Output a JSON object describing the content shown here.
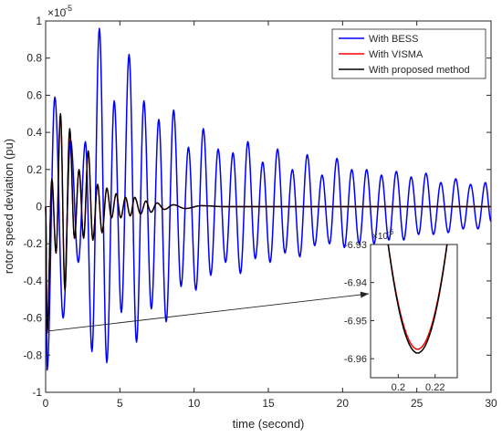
{
  "chart_data": [
    {
      "type": "line",
      "xlabel": "time (second)",
      "ylabel": "rotor speed deviation (pu)",
      "exponent_label": "×10",
      "exponent_power": "-5",
      "xlim": [
        0,
        30
      ],
      "ylim": [
        -1,
        1
      ],
      "x_ticks": [
        "0",
        "5",
        "10",
        "15",
        "20",
        "25",
        "30"
      ],
      "y_ticks": [
        "-1",
        "-0.8",
        "-0.6",
        "-0.4",
        "-0.2",
        "0",
        "0.2",
        "0.4",
        "0.6",
        "0.8",
        "1"
      ],
      "grid": false,
      "legend_position": "top-right",
      "series": [
        {
          "name": "With BESS",
          "color": "#0000ff",
          "freq_hz": 1.0,
          "extrema": [
            [
              0.1,
              -0.88
            ],
            [
              0.62,
              0.59
            ],
            [
              1.18,
              -0.6
            ],
            [
              1.68,
              0.36
            ],
            [
              2.2,
              -0.3
            ],
            [
              2.68,
              0.35
            ],
            [
              3.12,
              -0.78
            ],
            [
              3.62,
              0.96
            ],
            [
              4.12,
              -0.84
            ],
            [
              4.62,
              0.57
            ],
            [
              5.1,
              -0.57
            ],
            [
              5.62,
              0.82
            ],
            [
              6.12,
              -0.73
            ],
            [
              6.62,
              0.57
            ],
            [
              7.12,
              -0.55
            ],
            [
              7.62,
              0.47
            ],
            [
              8.12,
              -0.62
            ],
            [
              8.62,
              0.52
            ],
            [
              9.12,
              -0.43
            ],
            [
              9.62,
              0.32
            ],
            [
              10.12,
              -0.45
            ],
            [
              10.62,
              0.42
            ],
            [
              11.12,
              -0.37
            ],
            [
              11.62,
              0.31
            ],
            [
              12.12,
              -0.3
            ],
            [
              12.62,
              0.29
            ],
            [
              13.12,
              -0.36
            ],
            [
              13.62,
              0.35
            ],
            [
              14.12,
              -0.28
            ],
            [
              14.62,
              0.24
            ],
            [
              15.12,
              -0.3
            ],
            [
              15.62,
              0.31
            ],
            [
              16.12,
              -0.25
            ],
            [
              16.62,
              0.2
            ],
            [
              17.12,
              -0.27
            ],
            [
              17.62,
              0.28
            ],
            [
              18.12,
              -0.21
            ],
            [
              18.62,
              0.17
            ],
            [
              19.12,
              -0.2
            ],
            [
              19.62,
              0.26
            ],
            [
              20.12,
              -0.22
            ],
            [
              20.62,
              0.2
            ],
            [
              21.12,
              -0.2
            ],
            [
              21.62,
              0.2
            ],
            [
              22.12,
              -0.2
            ],
            [
              22.62,
              0.17
            ],
            [
              23.12,
              -0.18
            ],
            [
              23.62,
              0.19
            ],
            [
              24.12,
              -0.18
            ],
            [
              24.62,
              0.16
            ],
            [
              25.12,
              -0.15
            ],
            [
              25.62,
              0.18
            ],
            [
              26.12,
              -0.15
            ],
            [
              26.62,
              0.13
            ],
            [
              27.12,
              -0.14
            ],
            [
              27.62,
              0.15
            ],
            [
              28.12,
              -0.12
            ],
            [
              28.62,
              0.12
            ],
            [
              29.12,
              -0.12
            ],
            [
              29.62,
              0.13
            ],
            [
              30.0,
              -0.08
            ]
          ]
        },
        {
          "name": "With VISMA",
          "color": "#ff0000",
          "freq_hz": 1.6,
          "extrema": [
            [
              0.1,
              -0.68
            ],
            [
              0.42,
              0.15
            ],
            [
              0.7,
              -0.25
            ],
            [
              1.0,
              0.5
            ],
            [
              1.3,
              -0.45
            ],
            [
              1.62,
              0.42
            ],
            [
              1.94,
              -0.17
            ],
            [
              2.25,
              0.2
            ],
            [
              2.56,
              -0.17
            ],
            [
              2.87,
              0.3
            ],
            [
              3.18,
              -0.18
            ],
            [
              3.5,
              0.12
            ],
            [
              3.8,
              -0.14
            ],
            [
              4.12,
              0.1
            ],
            [
              4.44,
              -0.06
            ],
            [
              4.75,
              0.07
            ],
            [
              5.06,
              -0.06
            ],
            [
              5.38,
              0.05
            ],
            [
              5.7,
              -0.05
            ],
            [
              6.0,
              0.05
            ],
            [
              6.4,
              -0.04
            ],
            [
              6.75,
              0.03
            ],
            [
              7.1,
              -0.03
            ],
            [
              7.5,
              0.02
            ],
            [
              8.0,
              -0.015
            ],
            [
              8.6,
              0.01
            ],
            [
              9.4,
              -0.01
            ],
            [
              10.5,
              0.005
            ],
            [
              12.0,
              0.0
            ],
            [
              30.0,
              0.0
            ]
          ]
        },
        {
          "name": "With proposed method",
          "color": "#000000",
          "freq_hz": 1.6,
          "extrema": [
            [
              0.1,
              -0.68
            ],
            [
              0.42,
              0.15
            ],
            [
              0.7,
              -0.25
            ],
            [
              1.0,
              0.5
            ],
            [
              1.3,
              -0.45
            ],
            [
              1.62,
              0.42
            ],
            [
              1.94,
              -0.17
            ],
            [
              2.25,
              0.2
            ],
            [
              2.56,
              -0.17
            ],
            [
              2.87,
              0.3
            ],
            [
              3.18,
              -0.18
            ],
            [
              3.5,
              0.12
            ],
            [
              3.8,
              -0.14
            ],
            [
              4.12,
              0.1
            ],
            [
              4.44,
              -0.06
            ],
            [
              4.75,
              0.07
            ],
            [
              5.06,
              -0.06
            ],
            [
              5.38,
              0.05
            ],
            [
              5.7,
              -0.05
            ],
            [
              6.0,
              0.05
            ],
            [
              6.4,
              -0.04
            ],
            [
              6.75,
              0.03
            ],
            [
              7.1,
              -0.03
            ],
            [
              7.5,
              0.02
            ],
            [
              8.0,
              -0.015
            ],
            [
              8.6,
              0.01
            ],
            [
              9.4,
              -0.01
            ],
            [
              10.5,
              0.005
            ],
            [
              12.0,
              0.0
            ],
            [
              30.0,
              0.0
            ]
          ]
        }
      ]
    },
    {
      "type": "line",
      "role": "inset-zoom",
      "exponent_label": "×10",
      "exponent_power": "-6",
      "xlim": [
        0.185,
        0.232
      ],
      "ylim": [
        -6.965,
        -6.93
      ],
      "x_ticks": [
        "0.2",
        "0.22"
      ],
      "x_tick_values": [
        0.2,
        0.22
      ],
      "y_ticks": [
        "-6.93",
        "-6.94",
        "-6.95",
        "-6.96"
      ],
      "y_tick_values": [
        -6.93,
        -6.94,
        -6.95,
        -6.96
      ],
      "series": [
        {
          "name": "With VISMA",
          "color": "#ff0000",
          "vertex": [
            0.2105,
            -6.9575
          ]
        },
        {
          "name": "With proposed method",
          "color": "#000000",
          "vertex": [
            0.2105,
            -6.9585
          ]
        }
      ],
      "pointer_from": [
        0.2,
        -0.67
      ]
    }
  ]
}
